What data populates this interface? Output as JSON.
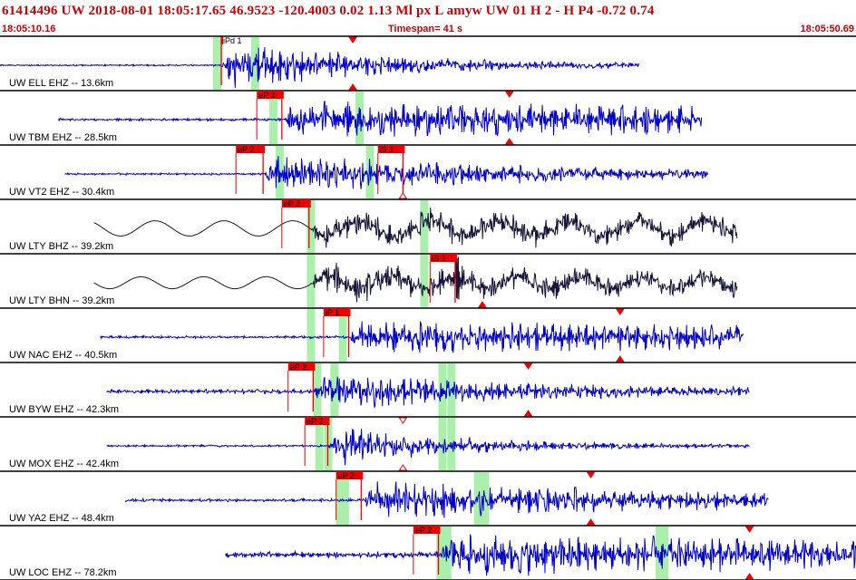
{
  "header": {
    "title": "61414496 UW 2018-08-01 18:05:17.65   46.9523 -120.4003   0.02  1.13 Ml  px  L amyw     UW 01  H   2  -  H P4   -0.72  0.74",
    "start_time": "18:05:10.16",
    "timespan": "Timespan=  41 s",
    "end_time": "18:05:50.69"
  },
  "colors": {
    "trace_blue": "#0000cc",
    "trace_dark": "#15153a",
    "pick_red": "#ee0000",
    "window_green": "#aaf0aa",
    "text_red": "#cc0000"
  },
  "chart_data": {
    "type": "line",
    "x_unit": "s",
    "x_range": [
      0,
      41
    ],
    "grid": false,
    "traces": [
      {
        "label": "UW ELL EHZ -- 13.6km",
        "color": "blue",
        "data_start": 0.0,
        "data_end": 30.6,
        "onset": 10.6,
        "noise": 0.03,
        "peak": 0.95,
        "decay": 8,
        "period": 0.35,
        "windows": [
          10.2,
          12.2
        ],
        "picks": [
          {
            "label": "iPd 1",
            "t": 10.6,
            "end": 10.6
          }
        ],
        "triangles_down": [
          16.9
        ],
        "triangles_up": [
          16.9
        ]
      },
      {
        "label": "UW TBM EHZ -- 28.5km",
        "color": "blue",
        "data_start": 2.8,
        "data_end": 33.6,
        "onset": 13.5,
        "noise": 0.05,
        "peak": 0.7,
        "decay": 60,
        "period": 0.55,
        "windows": [
          12.9,
          17.2
        ],
        "picks": [
          {
            "label": "eP 2",
            "t": 12.3,
            "end": 13.5
          }
        ],
        "triangles_down": [
          24.4
        ],
        "triangles_up": [
          24.4
        ]
      },
      {
        "label": "UW VT2 EHZ -- 30.4km",
        "color": "blue",
        "data_start": 3.1,
        "data_end": 33.9,
        "onset": 12.6,
        "noise": 0.04,
        "peak": 0.75,
        "decay": 14,
        "period": 0.4,
        "windows": [
          13.2,
          17.7
        ],
        "picks": [
          {
            "label": "eP 2",
            "t": 11.3,
            "end": 12.6
          },
          {
            "label": "iS 1",
            "t": 18.1,
            "end": 19.3
          }
        ],
        "triangles_down": [],
        "triangles_up": [],
        "hollow_down": [],
        "hollow_up": [
          19.3
        ]
      },
      {
        "label": "UW LTY BHZ -- 39.2km",
        "color": "dark",
        "data_start": 4.5,
        "data_end": 35.3,
        "onset": 14.8,
        "noise": 0.0,
        "peak": 0.55,
        "decay": 60,
        "period": 0.5,
        "lowfreq": 0.28,
        "lowfreq_period": 3.3,
        "windows": [
          14.7,
          20.3
        ],
        "picks": [
          {
            "label": "eP 2",
            "t": 13.5,
            "end": 14.8
          }
        ],
        "triangles_down": [],
        "triangles_up": []
      },
      {
        "label": "UW LTY BHN -- 39.2km",
        "color": "dark",
        "data_start": 4.5,
        "data_end": 35.3,
        "onset": 14.8,
        "noise": 0.0,
        "peak": 0.6,
        "decay": 40,
        "period": 0.5,
        "lowfreq": 0.22,
        "lowfreq_period": 3.0,
        "spike": 21.9,
        "windows": [
          14.7,
          20.3
        ],
        "picks": [
          {
            "label": "iS 1",
            "t": 20.6,
            "end": 21.8
          }
        ],
        "triangles_down": [],
        "triangles_up": [
          23.1
        ]
      },
      {
        "label": "UW NAC EHZ -- 40.5km",
        "color": "blue",
        "data_start": 4.8,
        "data_end": 35.6,
        "onset": 16.7,
        "noise": 0.05,
        "peak": 0.6,
        "decay": 60,
        "period": 0.4,
        "windows": [
          14.7,
          16.4
        ],
        "picks": [
          {
            "label": "iP 1",
            "t": 15.5,
            "end": 16.7
          }
        ],
        "triangles_down": [
          29.7
        ],
        "triangles_up": [
          29.7
        ]
      },
      {
        "label": "UW BYW EHZ -- 42.3km",
        "color": "blue",
        "data_start": 5.1,
        "data_end": 35.9,
        "onset": 15.0,
        "noise": 0.09,
        "peak": 0.7,
        "decay": 10,
        "period": 0.35,
        "windows": [
          15.0,
          16.0,
          21.0,
          21.6
        ],
        "picks": [
          {
            "label": "eP 2",
            "t": 13.8,
            "end": 15.0
          }
        ],
        "triangles_down": [
          25.3
        ],
        "triangles_up": [
          25.3
        ]
      },
      {
        "label": "UW MOX EHZ -- 42.4km",
        "color": "blue",
        "data_start": 5.1,
        "data_end": 35.9,
        "onset": 15.7,
        "noise": 0.04,
        "peak": 0.8,
        "decay": 6,
        "period": 0.4,
        "windows": [
          15.1,
          15.7,
          21.0,
          21.6
        ],
        "picks": [
          {
            "label": "eP 2",
            "t": 14.6,
            "end": 15.7
          }
        ],
        "triangles_down": [],
        "triangles_up": [],
        "hollow_down": [
          19.3
        ],
        "hollow_up": [
          19.3
        ]
      },
      {
        "label": "UW YA2 EHZ -- 48.4km",
        "color": "blue",
        "data_start": 6.0,
        "data_end": 36.8,
        "onset": 17.3,
        "noise": 0.06,
        "peak": 0.75,
        "decay": 20,
        "period": 0.45,
        "windows": [
          16.1,
          16.5,
          22.7,
          23.2
        ],
        "picks": [
          {
            "label": "eP 2",
            "t": 16.1,
            "end": 17.3
          }
        ],
        "triangles_down": [
          28.3
        ],
        "triangles_up": [
          28.3
        ]
      },
      {
        "label": "UW LOC EHZ -- 78.2km",
        "color": "blue",
        "data_start": 10.8,
        "data_end": 41.0,
        "onset": 21.0,
        "noise": 0.12,
        "peak": 0.75,
        "decay": 40,
        "period": 0.4,
        "windows": [
          20.9,
          21.4,
          31.4,
          31.8
        ],
        "picks": [
          {
            "label": "eP 2",
            "t": 19.8,
            "end": 21.0
          }
        ],
        "triangles_down": [
          35.9
        ],
        "triangles_up": [
          35.9
        ]
      }
    ]
  }
}
